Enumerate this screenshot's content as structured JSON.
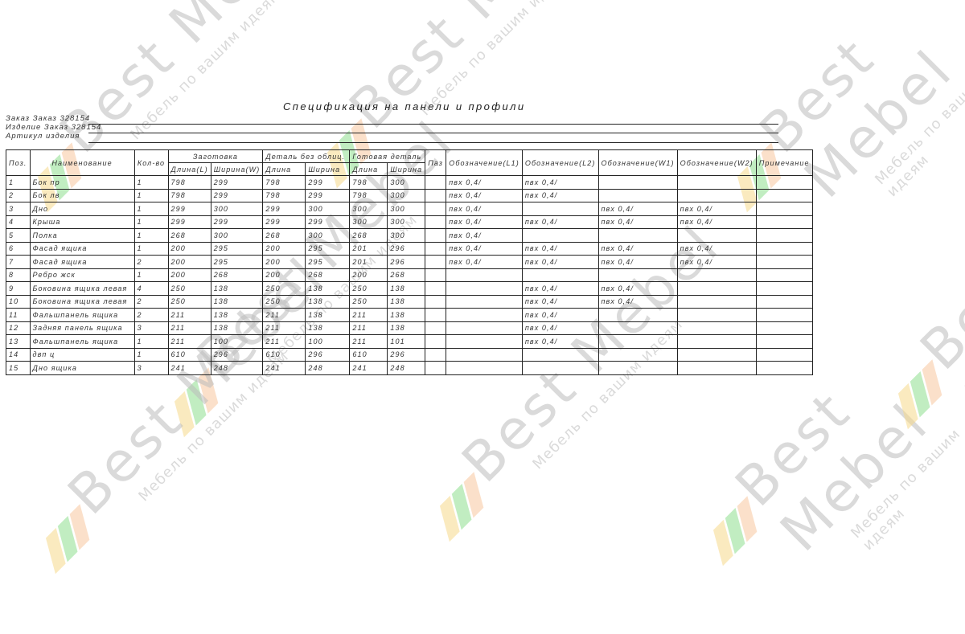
{
  "watermark": {
    "brand": "Best Mebel",
    "slogan": "Мебель по вашим идеям",
    "colors": [
      "#f7d98b",
      "#8fe08f",
      "#f8c8a0"
    ]
  },
  "title": "Спецификация на панели и профили",
  "info": {
    "order": "Заказ Заказ 328154",
    "product": "Изделие Заказ 328154",
    "article": "Артикул изделия"
  },
  "table": {
    "headers": {
      "pos": "Поз.",
      "name": "Наименование",
      "qty": "Кол-во",
      "blank": "Заготовка",
      "blank_l": "Длина(L)",
      "blank_w": "Ширина(W)",
      "detail": "Деталь без облиц.",
      "detail_l": "Длина",
      "detail_w": "Ширина",
      "finished": "Готовая деталь",
      "finished_l": "Длина",
      "finished_w": "Ширина",
      "pos2": "Паз",
      "edge_l1": "Обозначение(L1)",
      "edge_l2": "Обозначение(L2)",
      "edge_w1": "Обозначение(W1)",
      "edge_w2": "Обозначение(W2)",
      "note": "Примечание"
    },
    "rows": [
      [
        "1",
        "Бок пр",
        "1",
        "798",
        "299",
        "798",
        "299",
        "798",
        "300",
        "",
        "пвх 0,4/",
        "пвх 0,4/",
        "",
        "",
        ""
      ],
      [
        "2",
        "Бок лв",
        "1",
        "798",
        "299",
        "798",
        "299",
        "798",
        "300",
        "",
        "пвх 0,4/",
        "пвх 0,4/",
        "",
        "",
        ""
      ],
      [
        "3",
        "Дно",
        "1",
        "299",
        "300",
        "299",
        "300",
        "300",
        "300",
        "",
        "пвх 0,4/",
        "",
        "пвх 0,4/",
        "пвх 0,4/",
        ""
      ],
      [
        "4",
        "Крыша",
        "1",
        "299",
        "299",
        "299",
        "299",
        "300",
        "300",
        "",
        "пвх 0,4/",
        "пвх 0,4/",
        "пвх 0,4/",
        "пвх 0,4/",
        ""
      ],
      [
        "5",
        "Полка",
        "1",
        "268",
        "300",
        "268",
        "300",
        "268",
        "300",
        "",
        "пвх 0,4/",
        "",
        "",
        "",
        ""
      ],
      [
        "6",
        "Фасад ящика",
        "1",
        "200",
        "295",
        "200",
        "295",
        "201",
        "296",
        "",
        "пвх 0,4/",
        "пвх 0,4/",
        "пвх 0,4/",
        "пвх 0,4/",
        ""
      ],
      [
        "7",
        "Фасад ящика",
        "2",
        "200",
        "295",
        "200",
        "295",
        "201",
        "296",
        "",
        "пвх 0,4/",
        "пвх 0,4/",
        "пвх 0,4/",
        "пвх 0,4/",
        ""
      ],
      [
        "8",
        "Ребро жск",
        "1",
        "200",
        "268",
        "200",
        "268",
        "200",
        "268",
        "",
        "",
        "",
        "",
        "",
        ""
      ],
      [
        "9",
        "Боковина ящика левая",
        "4",
        "250",
        "138",
        "250",
        "138",
        "250",
        "138",
        "",
        "",
        "пвх 0,4/",
        "пвх 0,4/",
        "",
        ""
      ],
      [
        "10",
        "Боковина ящика левая",
        "2",
        "250",
        "138",
        "250",
        "138",
        "250",
        "138",
        "",
        "",
        "пвх 0,4/",
        "пвх 0,4/",
        "",
        ""
      ],
      [
        "11",
        "Фальшпанель ящика",
        "2",
        "211",
        "138",
        "211",
        "138",
        "211",
        "138",
        "",
        "",
        "пвх 0,4/",
        "",
        "",
        ""
      ],
      [
        "12",
        "Задняя панель ящика",
        "3",
        "211",
        "138",
        "211",
        "138",
        "211",
        "138",
        "",
        "",
        "пвх 0,4/",
        "",
        "",
        ""
      ],
      [
        "13",
        "Фальшпанель ящика",
        "1",
        "211",
        "100",
        "211",
        "100",
        "211",
        "101",
        "",
        "",
        "пвх 0,4/",
        "",
        "",
        ""
      ],
      [
        "14",
        "двп ц",
        "1",
        "610",
        "296",
        "610",
        "296",
        "610",
        "296",
        "",
        "",
        "",
        "",
        "",
        ""
      ],
      [
        "15",
        "Дно ящика",
        "3",
        "241",
        "248",
        "241",
        "248",
        "241",
        "248",
        "",
        "",
        "",
        "",
        "",
        ""
      ]
    ]
  }
}
